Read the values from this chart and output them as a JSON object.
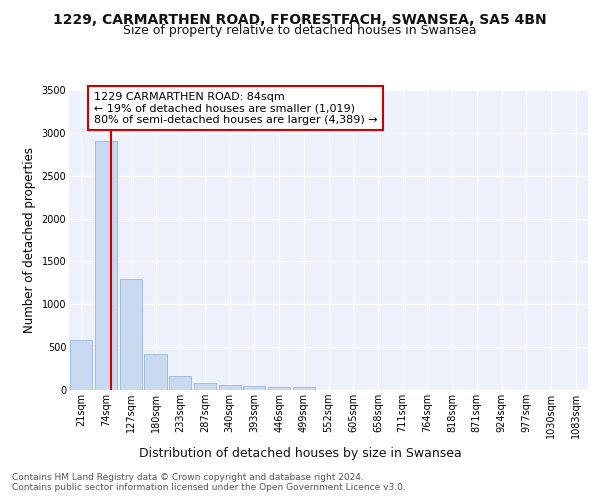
{
  "title": "1229, CARMARTHEN ROAD, FFORESTFACH, SWANSEA, SA5 4BN",
  "subtitle": "Size of property relative to detached houses in Swansea",
  "xlabel": "Distribution of detached houses by size in Swansea",
  "ylabel": "Number of detached properties",
  "bin_labels": [
    "21sqm",
    "74sqm",
    "127sqm",
    "180sqm",
    "233sqm",
    "287sqm",
    "340sqm",
    "393sqm",
    "446sqm",
    "499sqm",
    "552sqm",
    "605sqm",
    "658sqm",
    "711sqm",
    "764sqm",
    "818sqm",
    "871sqm",
    "924sqm",
    "977sqm",
    "1030sqm",
    "1083sqm"
  ],
  "bar_values": [
    580,
    2900,
    1300,
    420,
    160,
    80,
    55,
    45,
    40,
    35,
    5,
    4,
    3,
    2,
    2,
    2,
    1,
    1,
    1,
    1,
    0
  ],
  "bar_color": "#c9d9f0",
  "bar_edgecolor": "#8eadd4",
  "property_line_color": "#cc0000",
  "annotation_text": "1229 CARMARTHEN ROAD: 84sqm\n← 19% of detached houses are smaller (1,019)\n80% of semi-detached houses are larger (4,389) →",
  "annotation_box_edgecolor": "#cc0000",
  "ylim": [
    0,
    3500
  ],
  "yticks": [
    0,
    500,
    1000,
    1500,
    2000,
    2500,
    3000,
    3500
  ],
  "footer_text": "Contains HM Land Registry data © Crown copyright and database right 2024.\nContains public sector information licensed under the Open Government Licence v3.0.",
  "background_color": "#ffffff",
  "plot_bg_color": "#edf1fb",
  "grid_color": "#ffffff",
  "title_fontsize": 10,
  "subtitle_fontsize": 9,
  "ylabel_fontsize": 8.5,
  "xlabel_fontsize": 9,
  "tick_fontsize": 7,
  "annotation_fontsize": 8,
  "footer_fontsize": 6.5
}
